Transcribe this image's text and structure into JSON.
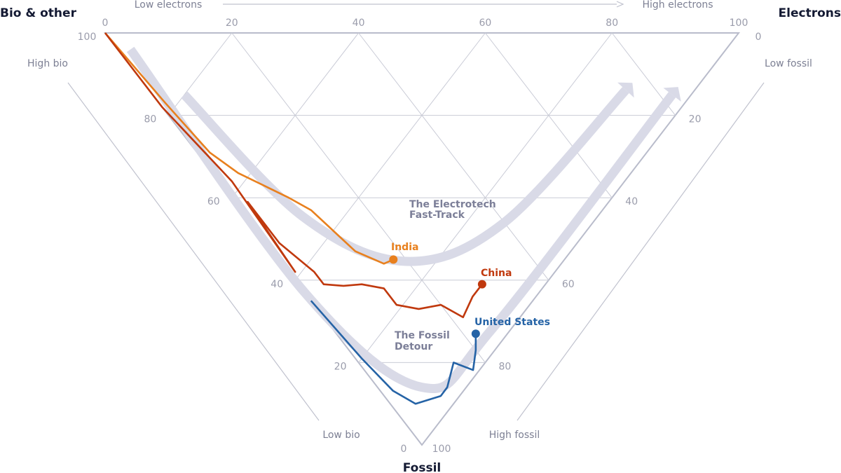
{
  "chart_data": {
    "type": "ternary-line",
    "axes": {
      "bio": {
        "title": "Bio & other",
        "low_label": "Low bio",
        "high_label": "High bio",
        "ticks": [
          "100",
          "80",
          "60",
          "40",
          "20",
          "0"
        ]
      },
      "electrons": {
        "title": "Electrons",
        "low_label": "Low electrons",
        "high_label": "High electrons",
        "ticks": [
          "0",
          "20",
          "40",
          "60",
          "80",
          "100"
        ]
      },
      "fossil": {
        "title": "Fossil",
        "low_label": "Low fossil",
        "high_label": "High fossil",
        "ticks": [
          "0",
          "20",
          "40",
          "60",
          "80",
          "100"
        ]
      }
    },
    "point_format": [
      "bio",
      "electrons",
      "fossil"
    ],
    "grid": true,
    "series": [
      {
        "name": "India",
        "color": "#e8801e",
        "points": [
          [
            100,
            0,
            0
          ],
          [
            82,
            1,
            17
          ],
          [
            69,
            2,
            29
          ],
          [
            62,
            4,
            34
          ],
          [
            51,
            9,
            40
          ],
          [
            46,
            11,
            43
          ],
          [
            40,
            12,
            48
          ],
          [
            34,
            13,
            53
          ],
          [
            28,
            16,
            56
          ],
          [
            27,
            18,
            55
          ]
        ]
      },
      {
        "name": "China",
        "color": "#c0390e",
        "points": [
          [
            100,
            0,
            0
          ],
          [
            82,
            0,
            18
          ],
          [
            62,
            2,
            36
          ],
          [
            41,
            1,
            58
          ],
          [
            57,
            2,
            41
          ],
          [
            47,
            2,
            51
          ],
          [
            38,
            4,
            58
          ],
          [
            35,
            4,
            61
          ],
          [
            32,
            7,
            62
          ],
          [
            29,
            10,
            61
          ],
          [
            25,
            13,
            62
          ],
          [
            21,
            13,
            66
          ],
          [
            17,
            16,
            67
          ],
          [
            14,
            20,
            66
          ],
          [
            9,
            22,
            69
          ],
          [
            10,
            26,
            64
          ],
          [
            10,
            29,
            61
          ]
        ]
      },
      {
        "name": "United States",
        "color": "#2563a6",
        "points": [
          [
            35,
            0,
            65
          ],
          [
            20,
            1,
            79
          ],
          [
            11,
            2,
            86
          ],
          [
            6,
            4,
            90
          ],
          [
            3,
            9,
            89
          ],
          [
            3,
            11,
            86
          ],
          [
            5,
            15,
            80
          ],
          [
            1,
            17,
            81
          ],
          [
            3,
            20,
            77
          ],
          [
            5,
            22,
            73
          ]
        ]
      }
    ],
    "guides": [
      {
        "label": [
          "The Electrotech",
          "Fast-Track"
        ],
        "color": "#d9dae7",
        "points": [
          [
            80,
            5,
            15
          ],
          [
            47,
            9,
            45
          ],
          [
            25,
            20,
            56
          ],
          [
            14,
            40,
            46
          ],
          [
            11,
            76,
            14
          ]
        ]
      },
      {
        "label": [
          "The Fossil",
          "Detour"
        ],
        "color": "#d9dae7",
        "points": [
          [
            94,
            2,
            4
          ],
          [
            37,
            0,
            63
          ],
          [
            7,
            7,
            86
          ],
          [
            3,
            25,
            72
          ],
          [
            3,
            82,
            15
          ]
        ]
      }
    ]
  }
}
